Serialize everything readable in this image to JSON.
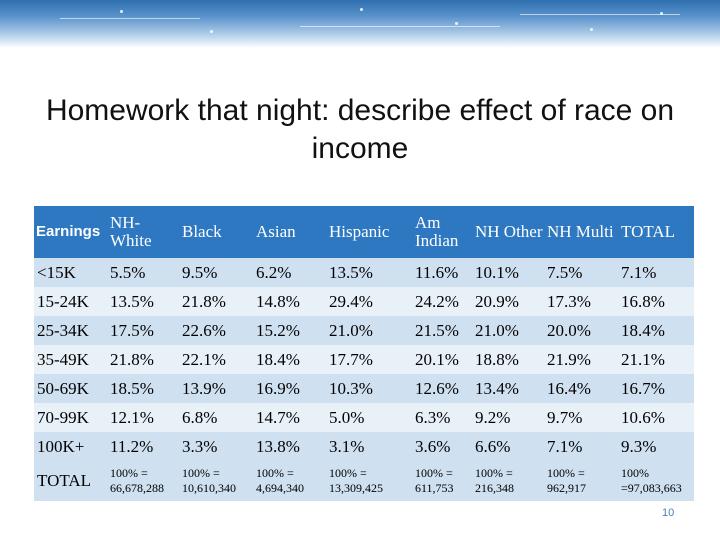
{
  "slide": {
    "title": "Homework that night:  describe effect of race on income",
    "page_number": "10"
  },
  "table": {
    "headers": [
      "Earnings",
      "NH-White",
      "Black",
      "Asian",
      "Hispanic",
      "Am Indian",
      "NH Other",
      "NH Multi",
      "TOTAL"
    ],
    "rows": [
      [
        "<15K",
        "5.5%",
        "9.5%",
        "6.2%",
        "13.5%",
        "11.6%",
        "10.1%",
        "7.5%",
        "7.1%"
      ],
      [
        "15-24K",
        "13.5%",
        "21.8%",
        "14.8%",
        "29.4%",
        "24.2%",
        "20.9%",
        "17.3%",
        "16.8%"
      ],
      [
        "25-34K",
        "17.5%",
        "22.6%",
        "15.2%",
        "21.0%",
        "21.5%",
        "21.0%",
        "20.0%",
        "18.4%"
      ],
      [
        "35-49K",
        "21.8%",
        "22.1%",
        "18.4%",
        "17.7%",
        "20.1%",
        "18.8%",
        "21.9%",
        "21.1%"
      ],
      [
        "50-69K",
        "18.5%",
        "13.9%",
        "16.9%",
        "10.3%",
        "12.6%",
        "13.4%",
        "16.4%",
        "16.7%"
      ],
      [
        "70-99K",
        "12.1%",
        "6.8%",
        "14.7%",
        "5.0%",
        "6.3%",
        "9.2%",
        "9.7%",
        "10.6%"
      ],
      [
        "100K+",
        "11.2%",
        "3.3%",
        "13.8%",
        "3.1%",
        "3.6%",
        "6.6%",
        "7.1%",
        "9.3%"
      ]
    ],
    "total_row": {
      "label": "TOTAL",
      "cells": [
        "100% = 66,678,288",
        "100% = 10,610,340",
        "100% = 4,694,340",
        "100% = 13,309,425",
        "100% = 611,753",
        "100% = 216,348",
        "100% = 962,917",
        "100% =97,083,663"
      ]
    }
  }
}
